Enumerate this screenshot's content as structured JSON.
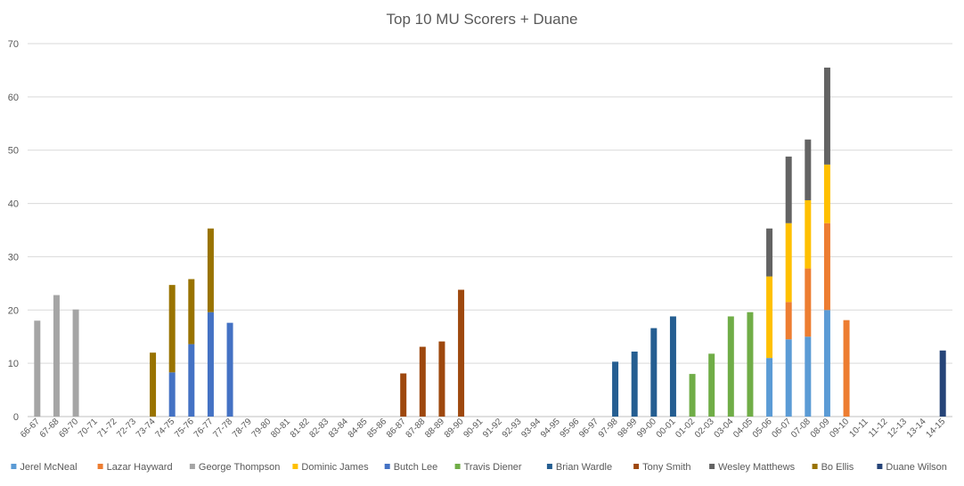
{
  "chart_data": {
    "type": "bar",
    "stacked": true,
    "title": "Top 10 MU Scorers + Duane",
    "xlabel": "",
    "ylabel": "",
    "ylim": [
      0,
      70
    ],
    "yticks": [
      0,
      10,
      20,
      30,
      40,
      50,
      60,
      70
    ],
    "grid": true,
    "legend_position": "bottom",
    "categories": [
      "66-67",
      "67-68",
      "69-70",
      "70-71",
      "71-72",
      "72-73",
      "73-74",
      "74-75",
      "75-76",
      "76-77",
      "77-78",
      "78-79",
      "79-80",
      "80-81",
      "81-82",
      "82-83",
      "83-84",
      "84-85",
      "85-86",
      "86-87",
      "87-88",
      "88-89",
      "89-90",
      "90-91",
      "91-92",
      "92-93",
      "93-94",
      "94-95",
      "95-96",
      "96-97",
      "97-98",
      "98-99",
      "99-00",
      "00-01",
      "01-02",
      "02-03",
      "03-04",
      "04-05",
      "05-06",
      "06-07",
      "07-08",
      "08-09",
      "09-10",
      "10-11",
      "11-12",
      "12-13",
      "13-14",
      "14-15"
    ],
    "series": [
      {
        "name": "Jerel McNeal",
        "color": "#5b9bd5",
        "values": {
          "05-06": 11.0,
          "06-07": 14.5,
          "07-08": 15.0,
          "08-09": 20.0
        }
      },
      {
        "name": "Lazar Hayward",
        "color": "#ed7d31",
        "values": {
          "06-07": 7.0,
          "07-08": 12.8,
          "08-09": 16.3,
          "09-10": 18.1
        }
      },
      {
        "name": "George Thompson",
        "color": "#a5a5a5",
        "values": {
          "66-67": 18.0,
          "67-68": 22.8,
          "69-70": 20.1
        }
      },
      {
        "name": "Dominic James",
        "color": "#ffc000",
        "values": {
          "05-06": 15.3,
          "06-07": 14.8,
          "07-08": 12.8,
          "08-09": 11.0
        }
      },
      {
        "name": "Butch Lee",
        "color": "#4472c4",
        "values": {
          "74-75": 8.3,
          "75-76": 13.6,
          "76-77": 19.6,
          "77-78": 17.6
        }
      },
      {
        "name": "Travis Diener",
        "color": "#70ad47",
        "values": {
          "01-02": 8.0,
          "02-03": 11.8,
          "03-04": 18.8,
          "04-05": 19.6
        }
      },
      {
        "name": "Brian Wardle",
        "color": "#255e91",
        "values": {
          "97-98": 10.3,
          "98-99": 12.2,
          "99-00": 16.6,
          "00-01": 18.8
        }
      },
      {
        "name": "Tony Smith",
        "color": "#9e480e",
        "values": {
          "86-87": 8.1,
          "87-88": 13.1,
          "88-89": 14.1,
          "89-90": 23.8
        }
      },
      {
        "name": "Wesley Matthews",
        "color": "#636363",
        "values": {
          "05-06": 9.0,
          "06-07": 12.5,
          "07-08": 11.4,
          "08-09": 18.2
        }
      },
      {
        "name": "Bo Ellis",
        "color": "#997300",
        "values": {
          "73-74": 12.0,
          "74-75": 16.4,
          "75-76": 12.2,
          "76-77": 15.7
        }
      },
      {
        "name": "Duane Wilson",
        "color": "#264478",
        "values": {
          "14-15": 12.4
        }
      }
    ]
  }
}
